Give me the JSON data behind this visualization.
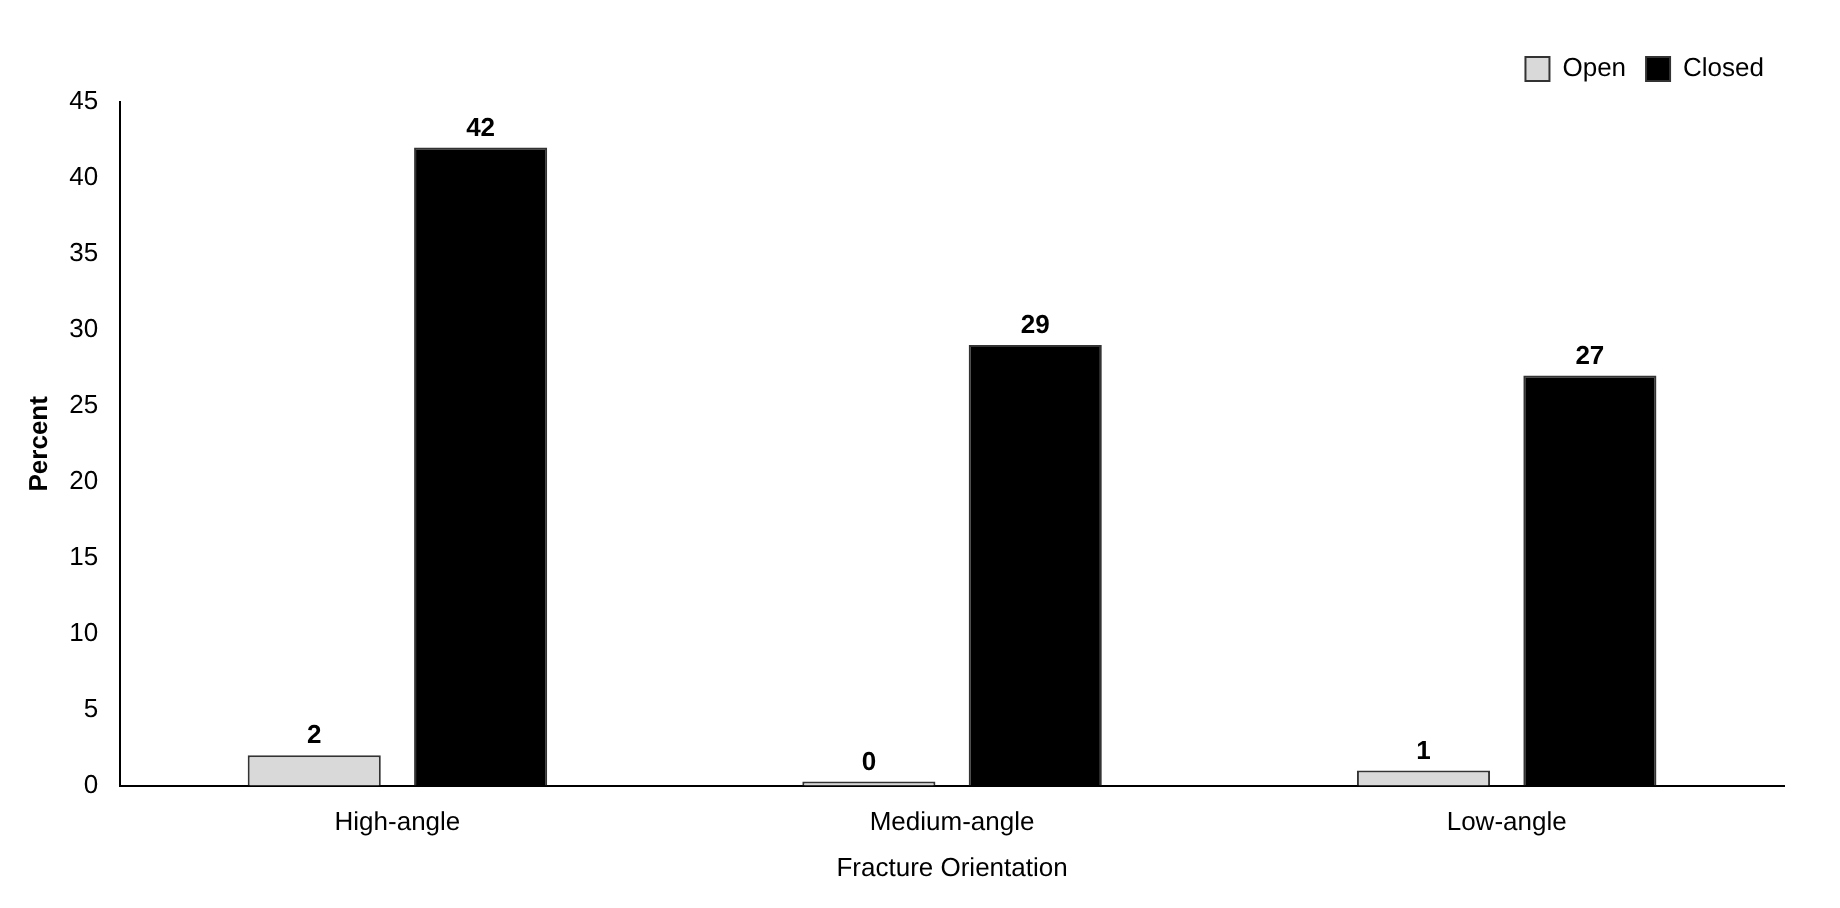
{
  "chart_data": {
    "type": "bar",
    "xlabel": "Fracture Orientation",
    "ylabel": "Percent",
    "categories": [
      "High-angle",
      "Medium-angle",
      "Low-angle"
    ],
    "series": [
      {
        "name": "Open",
        "color": "#d9d9d9",
        "values": [
          2,
          0,
          1
        ]
      },
      {
        "name": "Closed",
        "color": "#000000",
        "values": [
          42,
          29,
          27
        ]
      }
    ],
    "ylim": [
      0,
      45
    ],
    "yticks": [
      0,
      5,
      10,
      15,
      20,
      25,
      30,
      35,
      40,
      45
    ],
    "grid": false,
    "legend": "top right",
    "data_labels": true
  }
}
